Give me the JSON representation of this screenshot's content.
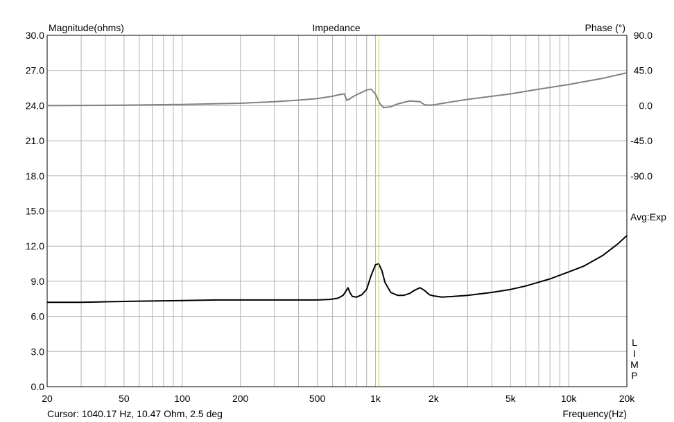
{
  "chart_data": {
    "type": "line",
    "title": "Impedance",
    "left_axis_label": "Magnitude(ohms)",
    "right_axis_label": "Phase (°)",
    "xlabel": "Frequency(Hz)",
    "x_scale": "log",
    "xlim": [
      20,
      20000
    ],
    "ylim_left": [
      0,
      30
    ],
    "ylim_right_top": 90,
    "phase_deg_per_ohm": 15,
    "phase_zero_at_ohm": 24,
    "grid": true,
    "x_tick_labels": [
      "20",
      "50",
      "100",
      "200",
      "500",
      "1k",
      "2k",
      "5k",
      "10k",
      "20k"
    ],
    "x_tick_values": [
      20,
      50,
      100,
      200,
      500,
      1000,
      2000,
      5000,
      10000,
      20000
    ],
    "y_left_tick_labels": [
      "30.0",
      "27.0",
      "24.0",
      "21.0",
      "18.0",
      "15.0",
      "12.0",
      "9.0",
      "6.0",
      "3.0",
      "0.0"
    ],
    "y_right_tick_labels": [
      "90.0",
      "45.0",
      "0.0",
      "-45.0",
      "-90.0"
    ],
    "right_annotation": "Avg:Exp",
    "vertical_legend": [
      "L",
      "I",
      "M",
      "P"
    ],
    "cursor": {
      "text": "Cursor: 1040.17 Hz, 10.47 Ohm, 2.5 deg",
      "frequency": 1040.17,
      "color": "#d4c84a"
    },
    "series": [
      {
        "color": "#000000",
        "axis": "left",
        "x": [
          20,
          30,
          40,
          60,
          100,
          150,
          200,
          300,
          400,
          500,
          580,
          640,
          680,
          700,
          720,
          740,
          760,
          800,
          850,
          900,
          950,
          1000,
          1040,
          1080,
          1120,
          1200,
          1300,
          1400,
          1500,
          1600,
          1700,
          1800,
          1900,
          2000,
          2200,
          2500,
          3000,
          4000,
          5000,
          6000,
          8000,
          10000,
          12000,
          15000,
          18000,
          20000
        ],
        "y": [
          7.2,
          7.2,
          7.25,
          7.3,
          7.35,
          7.4,
          7.4,
          7.4,
          7.4,
          7.4,
          7.45,
          7.55,
          7.8,
          8.1,
          8.45,
          8.0,
          7.7,
          7.65,
          7.85,
          8.3,
          9.5,
          10.4,
          10.5,
          9.9,
          8.9,
          8.05,
          7.8,
          7.8,
          7.95,
          8.25,
          8.45,
          8.2,
          7.85,
          7.75,
          7.65,
          7.7,
          7.8,
          8.05,
          8.3,
          8.6,
          9.2,
          9.8,
          10.3,
          11.2,
          12.2,
          12.9
        ]
      },
      {
        "color": "#808080",
        "axis": "right",
        "x": [
          20,
          50,
          100,
          200,
          300,
          400,
          500,
          600,
          650,
          690,
          710,
          730,
          760,
          800,
          850,
          900,
          950,
          1000,
          1050,
          1100,
          1200,
          1300,
          1500,
          1700,
          1800,
          1900,
          2000,
          2500,
          3000,
          5000,
          7000,
          10000,
          15000,
          20000
        ],
        "y": [
          0,
          0.5,
          1.5,
          3,
          5,
          7,
          9,
          12,
          14,
          15,
          7,
          8,
          11,
          14,
          17,
          20,
          21,
          15,
          3,
          -2.5,
          -1.5,
          2,
          6,
          5,
          1,
          0.5,
          1,
          5,
          8,
          15,
          21,
          27,
          35,
          42
        ]
      }
    ]
  }
}
